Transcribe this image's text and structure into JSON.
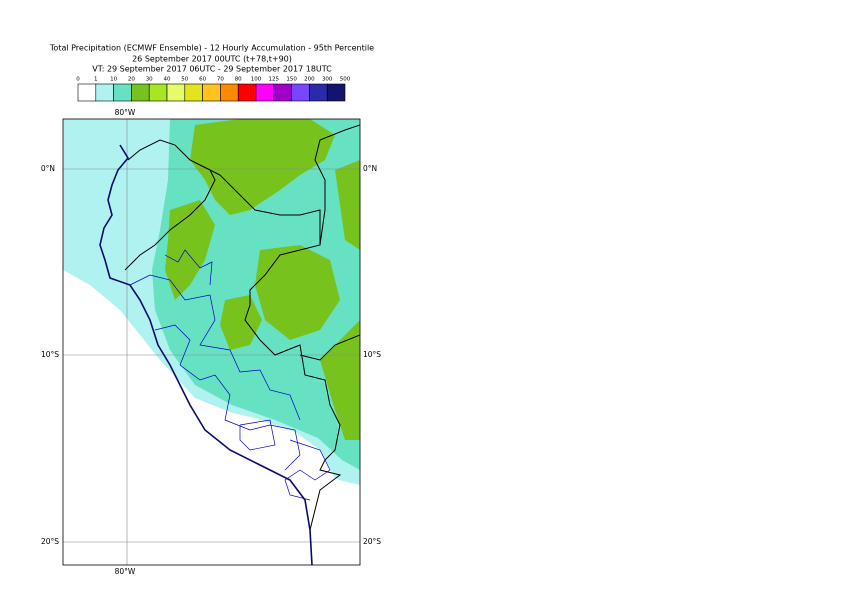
{
  "header": {
    "title": "Total Precipitation (ECMWF Ensemble) - 12 Hourly Accumulation - 95th Percentile",
    "subtitle": "26 September 2017 00UTC (t+78,t+90)",
    "valid_time": "VT: 29 September 2017 06UTC - 29 September 2017 18UTC"
  },
  "legend": {
    "labels": [
      0,
      1,
      10,
      20,
      30,
      40,
      50,
      60,
      70,
      80,
      100,
      125,
      150,
      200,
      300,
      500
    ],
    "colors": [
      "#ffffff",
      "#b0f2f0",
      "#66e2c2",
      "#78c21e",
      "#a6e622",
      "#e6fa6a",
      "#e4e41e",
      "#ffc21e",
      "#ff8a00",
      "#ff0000",
      "#ff00ff",
      "#a000c8",
      "#7846ff",
      "#2a2aaa",
      "#14146e"
    ]
  },
  "map": {
    "lon_label": "80°W",
    "lat_labels": [
      "0°N",
      "10°S",
      "20°S"
    ]
  }
}
